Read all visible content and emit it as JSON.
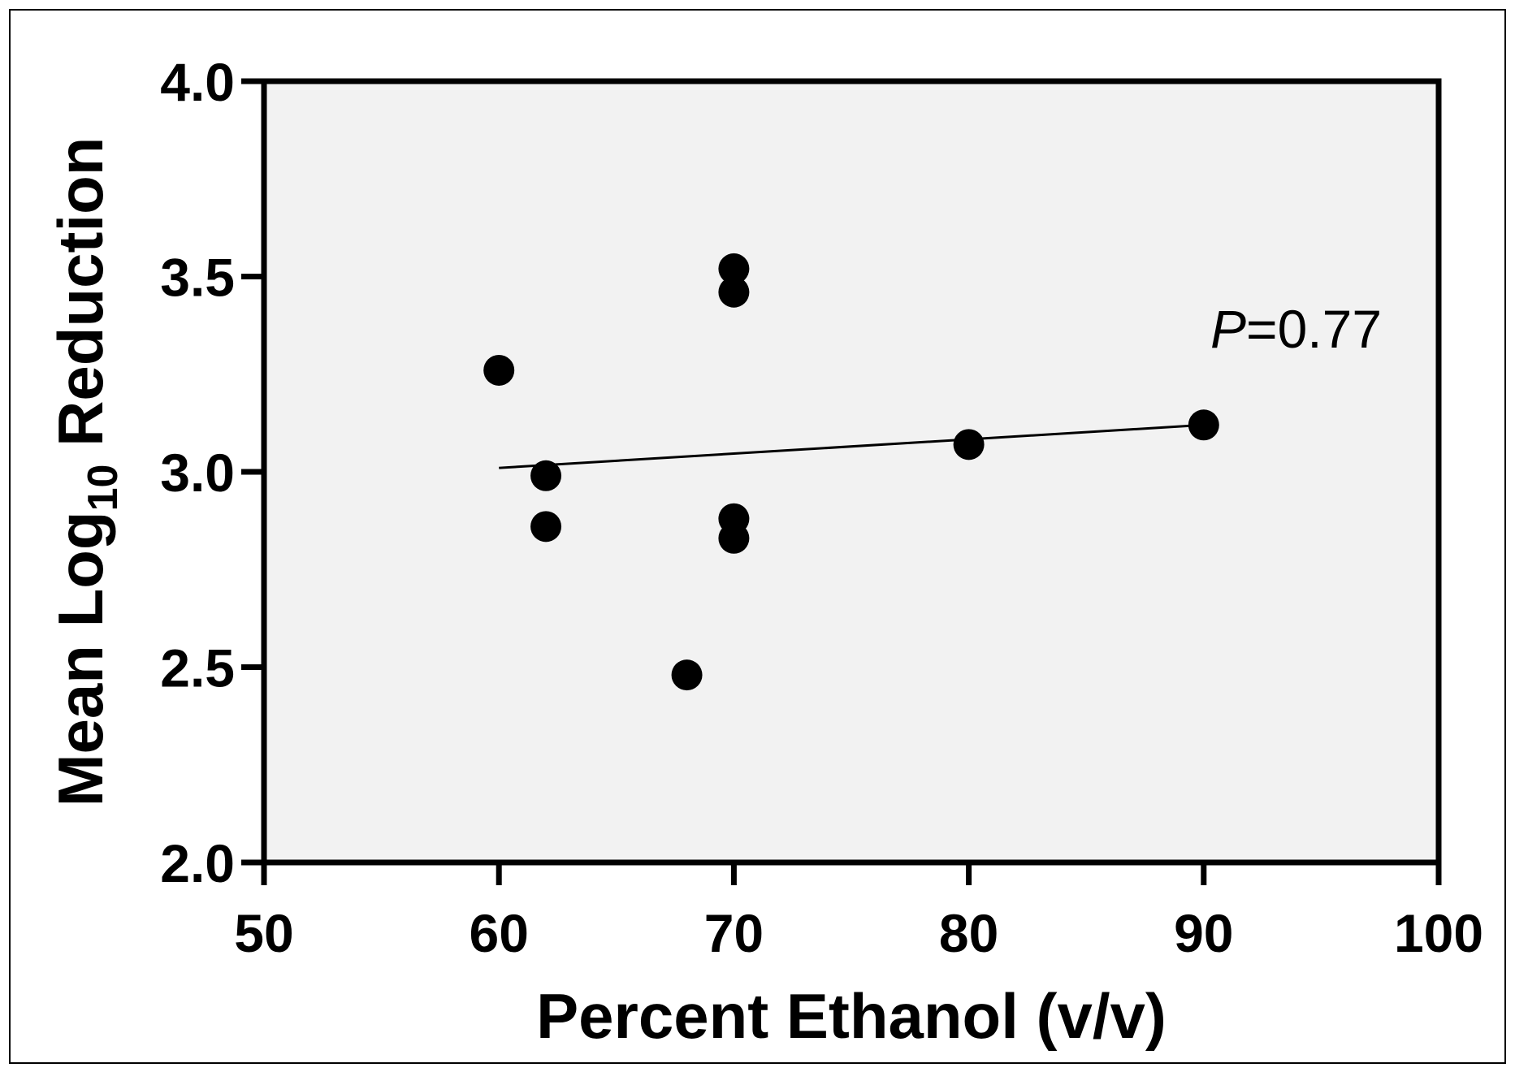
{
  "chart_data": {
    "type": "scatter",
    "title": "",
    "xlabel": "Percent Ethanol (v/v)",
    "ylabel": {
      "prefix": "Mean Log",
      "subscript": "10",
      "suffix": " Reduction"
    },
    "xlim": [
      50,
      100
    ],
    "ylim": [
      2.0,
      4.0
    ],
    "xticks": [
      50,
      60,
      70,
      80,
      90,
      100
    ],
    "yticks": [
      2.0,
      2.5,
      3.0,
      3.5,
      4.0
    ],
    "xtick_labels": [
      "50",
      "60",
      "70",
      "80",
      "90",
      "100"
    ],
    "ytick_labels": [
      "2.0",
      "2.5",
      "3.0",
      "3.5",
      "4.0"
    ],
    "grid": false,
    "plot_background": "#f2f2f2",
    "marker_color": "#000000",
    "points": [
      {
        "x": 60,
        "y": 3.26
      },
      {
        "x": 62,
        "y": 2.99
      },
      {
        "x": 62,
        "y": 2.86
      },
      {
        "x": 68,
        "y": 2.48
      },
      {
        "x": 70,
        "y": 3.52
      },
      {
        "x": 70,
        "y": 3.46
      },
      {
        "x": 70,
        "y": 2.88
      },
      {
        "x": 70,
        "y": 2.83
      },
      {
        "x": 80,
        "y": 3.07
      },
      {
        "x": 90,
        "y": 3.12
      }
    ],
    "regression_line": {
      "x": [
        60,
        90
      ],
      "y": [
        3.01,
        3.12
      ]
    },
    "annotation": {
      "italic": "P",
      "text": "=0.77"
    }
  }
}
